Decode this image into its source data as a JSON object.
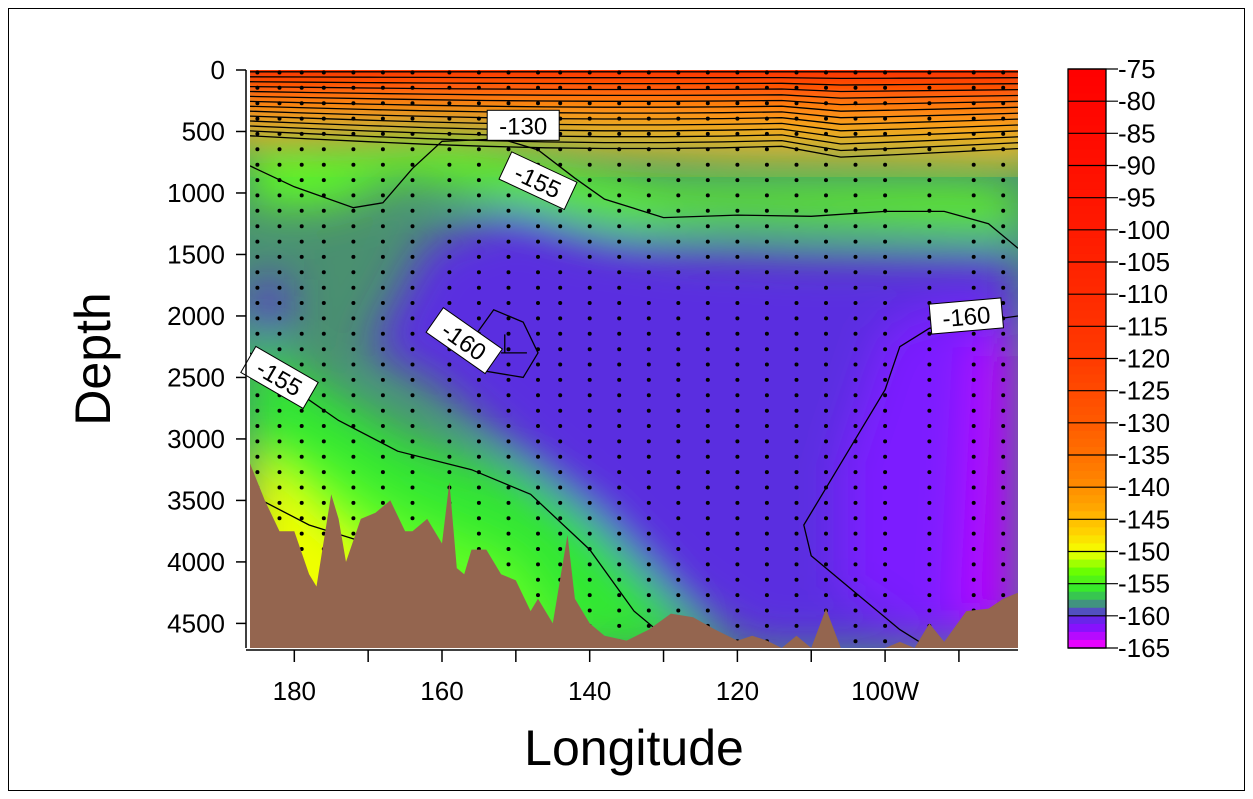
{
  "chart_data": {
    "type": "heatmap",
    "title": "",
    "xlabel": "Longitude",
    "ylabel": "Depth",
    "xlim": [
      186,
      82
    ],
    "ylim": [
      4700,
      0
    ],
    "x_ticks": [
      {
        "value": 180,
        "label": "180"
      },
      {
        "value": 160,
        "label": "160"
      },
      {
        "value": 140,
        "label": "140"
      },
      {
        "value": 120,
        "label": "120"
      },
      {
        "value": 100,
        "label": "100W"
      }
    ],
    "x_minor_ticks": [
      170,
      150,
      130,
      110,
      90
    ],
    "y_ticks": [
      0,
      500,
      1000,
      1500,
      2000,
      2500,
      3000,
      3500,
      4000,
      4500
    ],
    "colorbar": {
      "levels": [
        -75,
        -80,
        -85,
        -90,
        -95,
        -100,
        -105,
        -110,
        -115,
        -120,
        -125,
        -130,
        -135,
        -140,
        -145,
        -150,
        -155,
        -160,
        -165
      ],
      "colors": {
        "c-75": "#ff0000",
        "c-100": "#ff2a00",
        "c-125": "#ff5a00",
        "c-140": "#ff9a1a",
        "c-147": "#ffd21e",
        "c-150": "#f0ff00",
        "c-153": "#60ff20",
        "c-156": "#30e830",
        "c-158": "#4a9070",
        "c-160": "#5a2ee0",
        "c-162": "#7b1aff",
        "c-165": "#ff00ff"
      }
    },
    "contour_labels": [
      {
        "text": "-155",
        "lon": 147,
        "depth": 900
      },
      {
        "text": "-160",
        "lon": 157,
        "depth": 2200
      },
      {
        "text": "-155",
        "lon": 182,
        "depth": 2500
      },
      {
        "text": "-160",
        "lon": 89,
        "depth": 2000
      },
      {
        "text": "-130",
        "lon": 149,
        "depth": 450
      }
    ],
    "grid": false,
    "legend_position": "right colorbar",
    "bathymetry_color": "#94654f",
    "bathymetry": [
      [
        186,
        3200
      ],
      [
        184,
        3500
      ],
      [
        182,
        3750
      ],
      [
        180,
        3750
      ],
      [
        178,
        4100
      ],
      [
        177,
        4200
      ],
      [
        175,
        3450
      ],
      [
        174,
        3650
      ],
      [
        173,
        4000
      ],
      [
        171,
        3650
      ],
      [
        169,
        3600
      ],
      [
        167,
        3500
      ],
      [
        165,
        3750
      ],
      [
        164,
        3750
      ],
      [
        162,
        3650
      ],
      [
        160,
        3850
      ],
      [
        159,
        3350
      ],
      [
        158,
        4050
      ],
      [
        157,
        4100
      ],
      [
        156,
        3900
      ],
      [
        154,
        3900
      ],
      [
        152,
        4100
      ],
      [
        150,
        4150
      ],
      [
        148,
        4400
      ],
      [
        147,
        4300
      ],
      [
        145,
        4500
      ],
      [
        143,
        3780
      ],
      [
        142,
        4300
      ],
      [
        140,
        4500
      ],
      [
        138,
        4600
      ],
      [
        135,
        4640
      ],
      [
        132,
        4550
      ],
      [
        129,
        4420
      ],
      [
        126,
        4450
      ],
      [
        123,
        4550
      ],
      [
        120,
        4640
      ],
      [
        118,
        4600
      ],
      [
        116,
        4640
      ],
      [
        114,
        4700
      ],
      [
        112,
        4600
      ],
      [
        110,
        4700
      ],
      [
        108,
        4380
      ],
      [
        106,
        4700
      ],
      [
        104,
        4700
      ],
      [
        100,
        4700
      ],
      [
        98,
        4650
      ],
      [
        96,
        4700
      ],
      [
        94,
        4500
      ],
      [
        92,
        4650
      ],
      [
        89,
        4400
      ],
      [
        86,
        4380
      ],
      [
        84,
        4300
      ],
      [
        82,
        4250
      ]
    ],
    "station_longitudes": [
      185,
      182,
      179,
      176,
      172,
      168,
      164,
      159,
      155,
      151,
      147,
      144,
      140,
      136,
      132,
      128,
      124,
      120,
      116,
      112,
      108,
      104,
      100,
      94,
      88,
      84
    ]
  }
}
